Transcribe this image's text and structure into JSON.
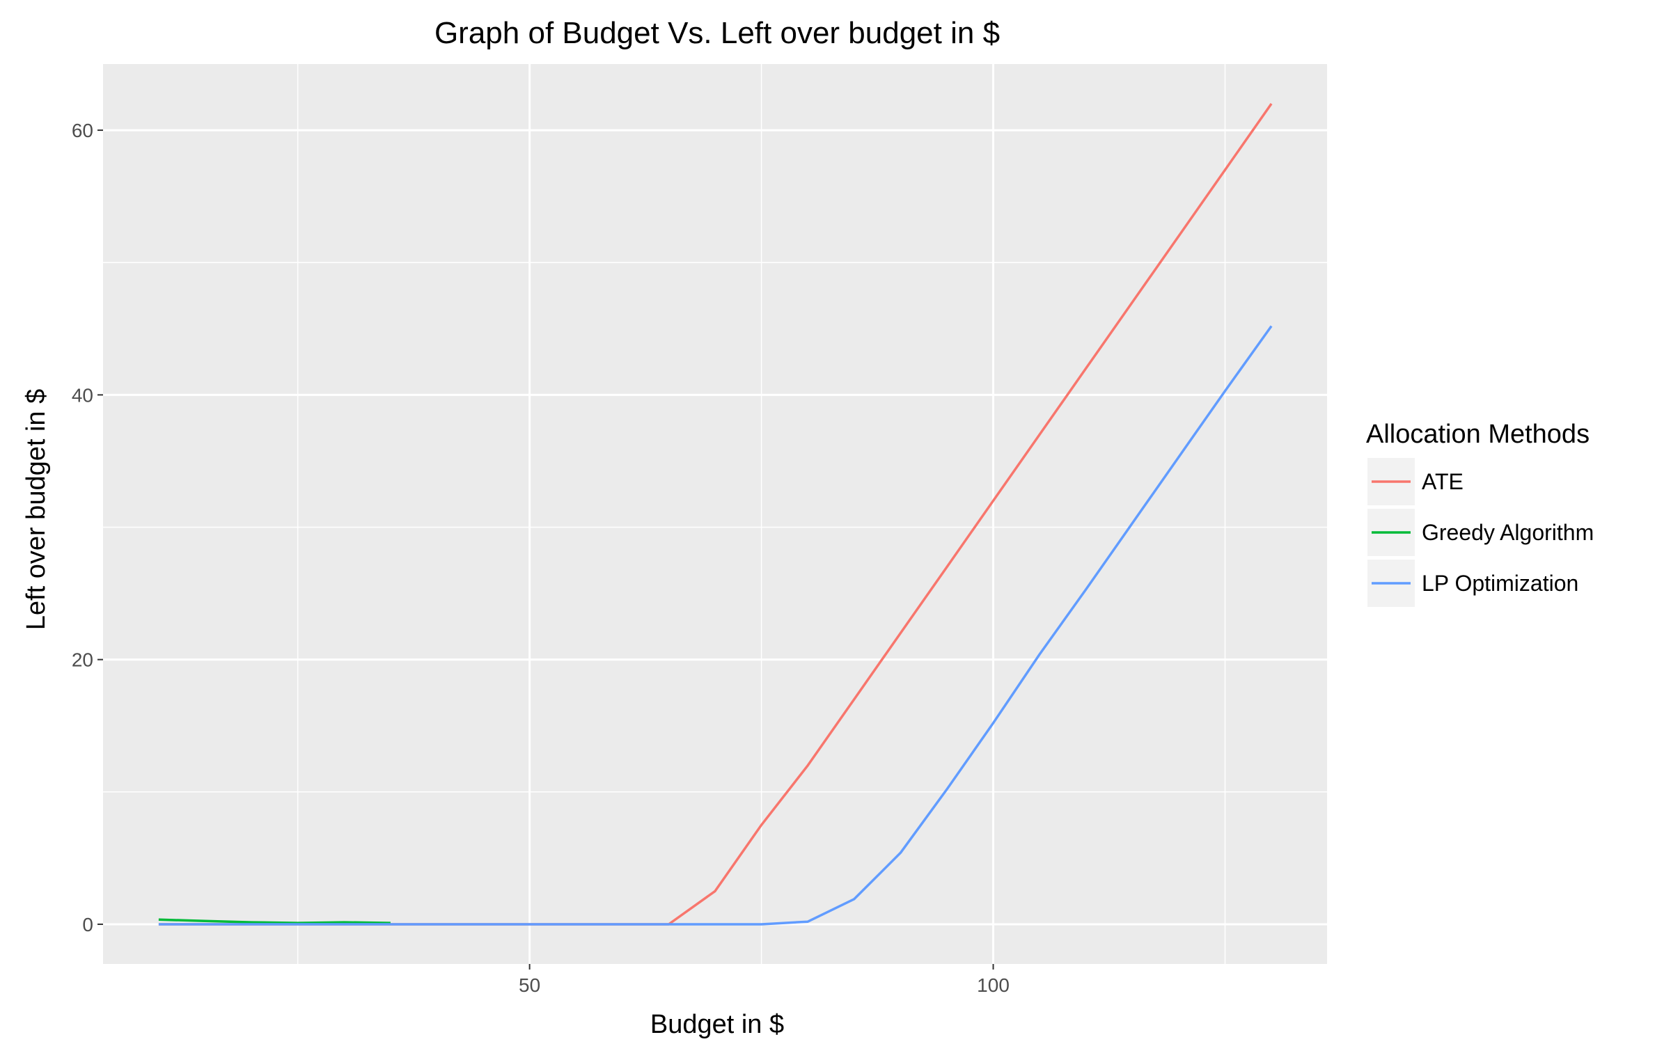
{
  "chart_data": {
    "type": "line",
    "title": "Graph of Budget Vs. Left over budget in $",
    "xlabel": "Budget in $",
    "ylabel": "Left over budget in $",
    "xlim": [
      4,
      136
    ],
    "ylim": [
      -3,
      65
    ],
    "x_ticks": [
      50,
      100
    ],
    "x_tick_labels": [
      "50",
      "100"
    ],
    "y_ticks": [
      0,
      20,
      40,
      60
    ],
    "y_tick_labels": [
      "0",
      "20",
      "40",
      "60"
    ],
    "x_minor": [
      25,
      75,
      125
    ],
    "y_minor": [
      10,
      30,
      50
    ],
    "grid": true,
    "panel_background": "#ebebeb",
    "legend": {
      "title": "Allocation Methods",
      "position": "right"
    },
    "series": [
      {
        "name": "ATE",
        "color": "#f8766d",
        "x": [
          10,
          15,
          20,
          25,
          30,
          35,
          40,
          45,
          50,
          55,
          60,
          65,
          70,
          75,
          80,
          85,
          90,
          95,
          100,
          105,
          110,
          115,
          120,
          125,
          130
        ],
        "y": [
          0,
          0,
          0,
          0,
          0,
          0,
          0,
          0,
          0,
          0,
          0,
          0,
          2.5,
          7.5,
          12,
          17,
          22,
          27,
          32,
          37,
          42,
          47,
          52,
          57,
          62
        ]
      },
      {
        "name": "Greedy Algorithm",
        "color": "#00ba38",
        "x": [
          10,
          15,
          20,
          25,
          30,
          35
        ],
        "y": [
          0.35,
          0.25,
          0.15,
          0.1,
          0.15,
          0.1
        ]
      },
      {
        "name": "LP Optimization",
        "color": "#619cff",
        "x": [
          10,
          15,
          20,
          25,
          30,
          35,
          40,
          45,
          50,
          55,
          60,
          65,
          70,
          75,
          80,
          85,
          90,
          95,
          100,
          105,
          110,
          115,
          120,
          125,
          130
        ],
        "y": [
          0,
          0,
          0,
          0,
          0,
          0,
          0,
          0,
          0,
          0,
          0,
          0,
          0,
          0,
          0.2,
          1.9,
          5.4,
          10.2,
          15.2,
          20.4,
          25.3,
          30.3,
          35.3,
          40.3,
          45.2
        ]
      }
    ]
  }
}
